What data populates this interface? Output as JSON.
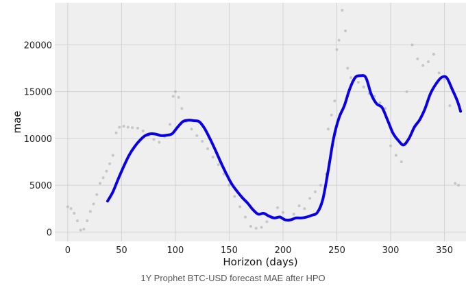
{
  "chart_data": {
    "type": "line",
    "caption": "1Y Prophet BTC-USD forecast MAE after HPO",
    "xlabel": "Horizon (days)",
    "ylabel": "mae",
    "xlim": [
      -12,
      370
    ],
    "ylim": [
      -1000,
      24500
    ],
    "x_ticks": [
      0,
      50,
      100,
      150,
      200,
      250,
      300,
      350
    ],
    "y_ticks": [
      0,
      5000,
      10000,
      15000,
      20000
    ],
    "grid": true,
    "colors": {
      "background": "#efefef",
      "line": "#0a00e6",
      "points": "#b8b8b8",
      "grid": "#d2d2d2"
    },
    "series": [
      {
        "kind": "line",
        "x": [
          37,
          42,
          47,
          52,
          57,
          62,
          67,
          72,
          77,
          82,
          87,
          92,
          97,
          102,
          107,
          112,
          117,
          122,
          127,
          132,
          137,
          142,
          147,
          152,
          157,
          162,
          167,
          172,
          177,
          182,
          187,
          192,
          197,
          202,
          207,
          212,
          217,
          222,
          227,
          232,
          237,
          242,
          247,
          252,
          257,
          262,
          267,
          272,
          277,
          282,
          287,
          292,
          297,
          302,
          307,
          312,
          317,
          322,
          327,
          332,
          337,
          342,
          347,
          352,
          357,
          362,
          365
        ],
        "y": [
          3300,
          4300,
          5700,
          7000,
          8200,
          9100,
          9800,
          10300,
          10500,
          10450,
          10300,
          10350,
          10500,
          11200,
          11800,
          11950,
          11900,
          11800,
          11100,
          10000,
          8800,
          7500,
          6300,
          5200,
          4400,
          3700,
          3100,
          2400,
          1900,
          2000,
          1700,
          1500,
          1600,
          1300,
          1300,
          1500,
          1500,
          1600,
          1800,
          2100,
          3500,
          6600,
          10000,
          12200,
          13500,
          15300,
          16500,
          16700,
          16500,
          14700,
          13700,
          13300,
          12000,
          10600,
          9800,
          9300,
          10000,
          11200,
          12000,
          13200,
          14800,
          15800,
          16500,
          16500,
          15300,
          14000,
          12900
        ]
      },
      {
        "kind": "scatter",
        "x": [
          0,
          3,
          6,
          9,
          12,
          15,
          18,
          21,
          24,
          27,
          30,
          33,
          36,
          39,
          42,
          45,
          48,
          52,
          56,
          60,
          65,
          70,
          75,
          80,
          85,
          90,
          95,
          98,
          100,
          103,
          106,
          110,
          115,
          120,
          125,
          130,
          135,
          140,
          145,
          150,
          155,
          160,
          165,
          170,
          175,
          180,
          185,
          190,
          195,
          200,
          205,
          210,
          215,
          220,
          225,
          230,
          235,
          240,
          242,
          245,
          248,
          250,
          252,
          255,
          258,
          260,
          263,
          266,
          270,
          275,
          280,
          285,
          290,
          295,
          300,
          305,
          310,
          315,
          320,
          325,
          330,
          335,
          340,
          345,
          350,
          355,
          360,
          363
        ],
        "y": [
          2700,
          2500,
          2000,
          1200,
          200,
          300,
          1200,
          2200,
          3000,
          4000,
          5200,
          5800,
          6500,
          7300,
          8200,
          10600,
          11200,
          11300,
          11200,
          11150,
          11100,
          10800,
          10300,
          9900,
          9600,
          10200,
          11500,
          14500,
          15000,
          14400,
          13200,
          11800,
          11000,
          10300,
          9700,
          8900,
          8000,
          7200,
          6200,
          5000,
          3800,
          2700,
          1600,
          600,
          400,
          500,
          1100,
          1500,
          2600,
          2100,
          1200,
          1900,
          2800,
          2500,
          3600,
          4300,
          5000,
          6200,
          11000,
          12500,
          14000,
          19500,
          20500,
          23700,
          21500,
          17500,
          16500,
          16200,
          16000,
          15500,
          14800,
          14500,
          13800,
          13200,
          9200,
          8200,
          7500,
          15000,
          20000,
          18500,
          17800,
          18200,
          19000,
          17000,
          16300,
          13500,
          5200,
          5000
        ]
      }
    ]
  }
}
